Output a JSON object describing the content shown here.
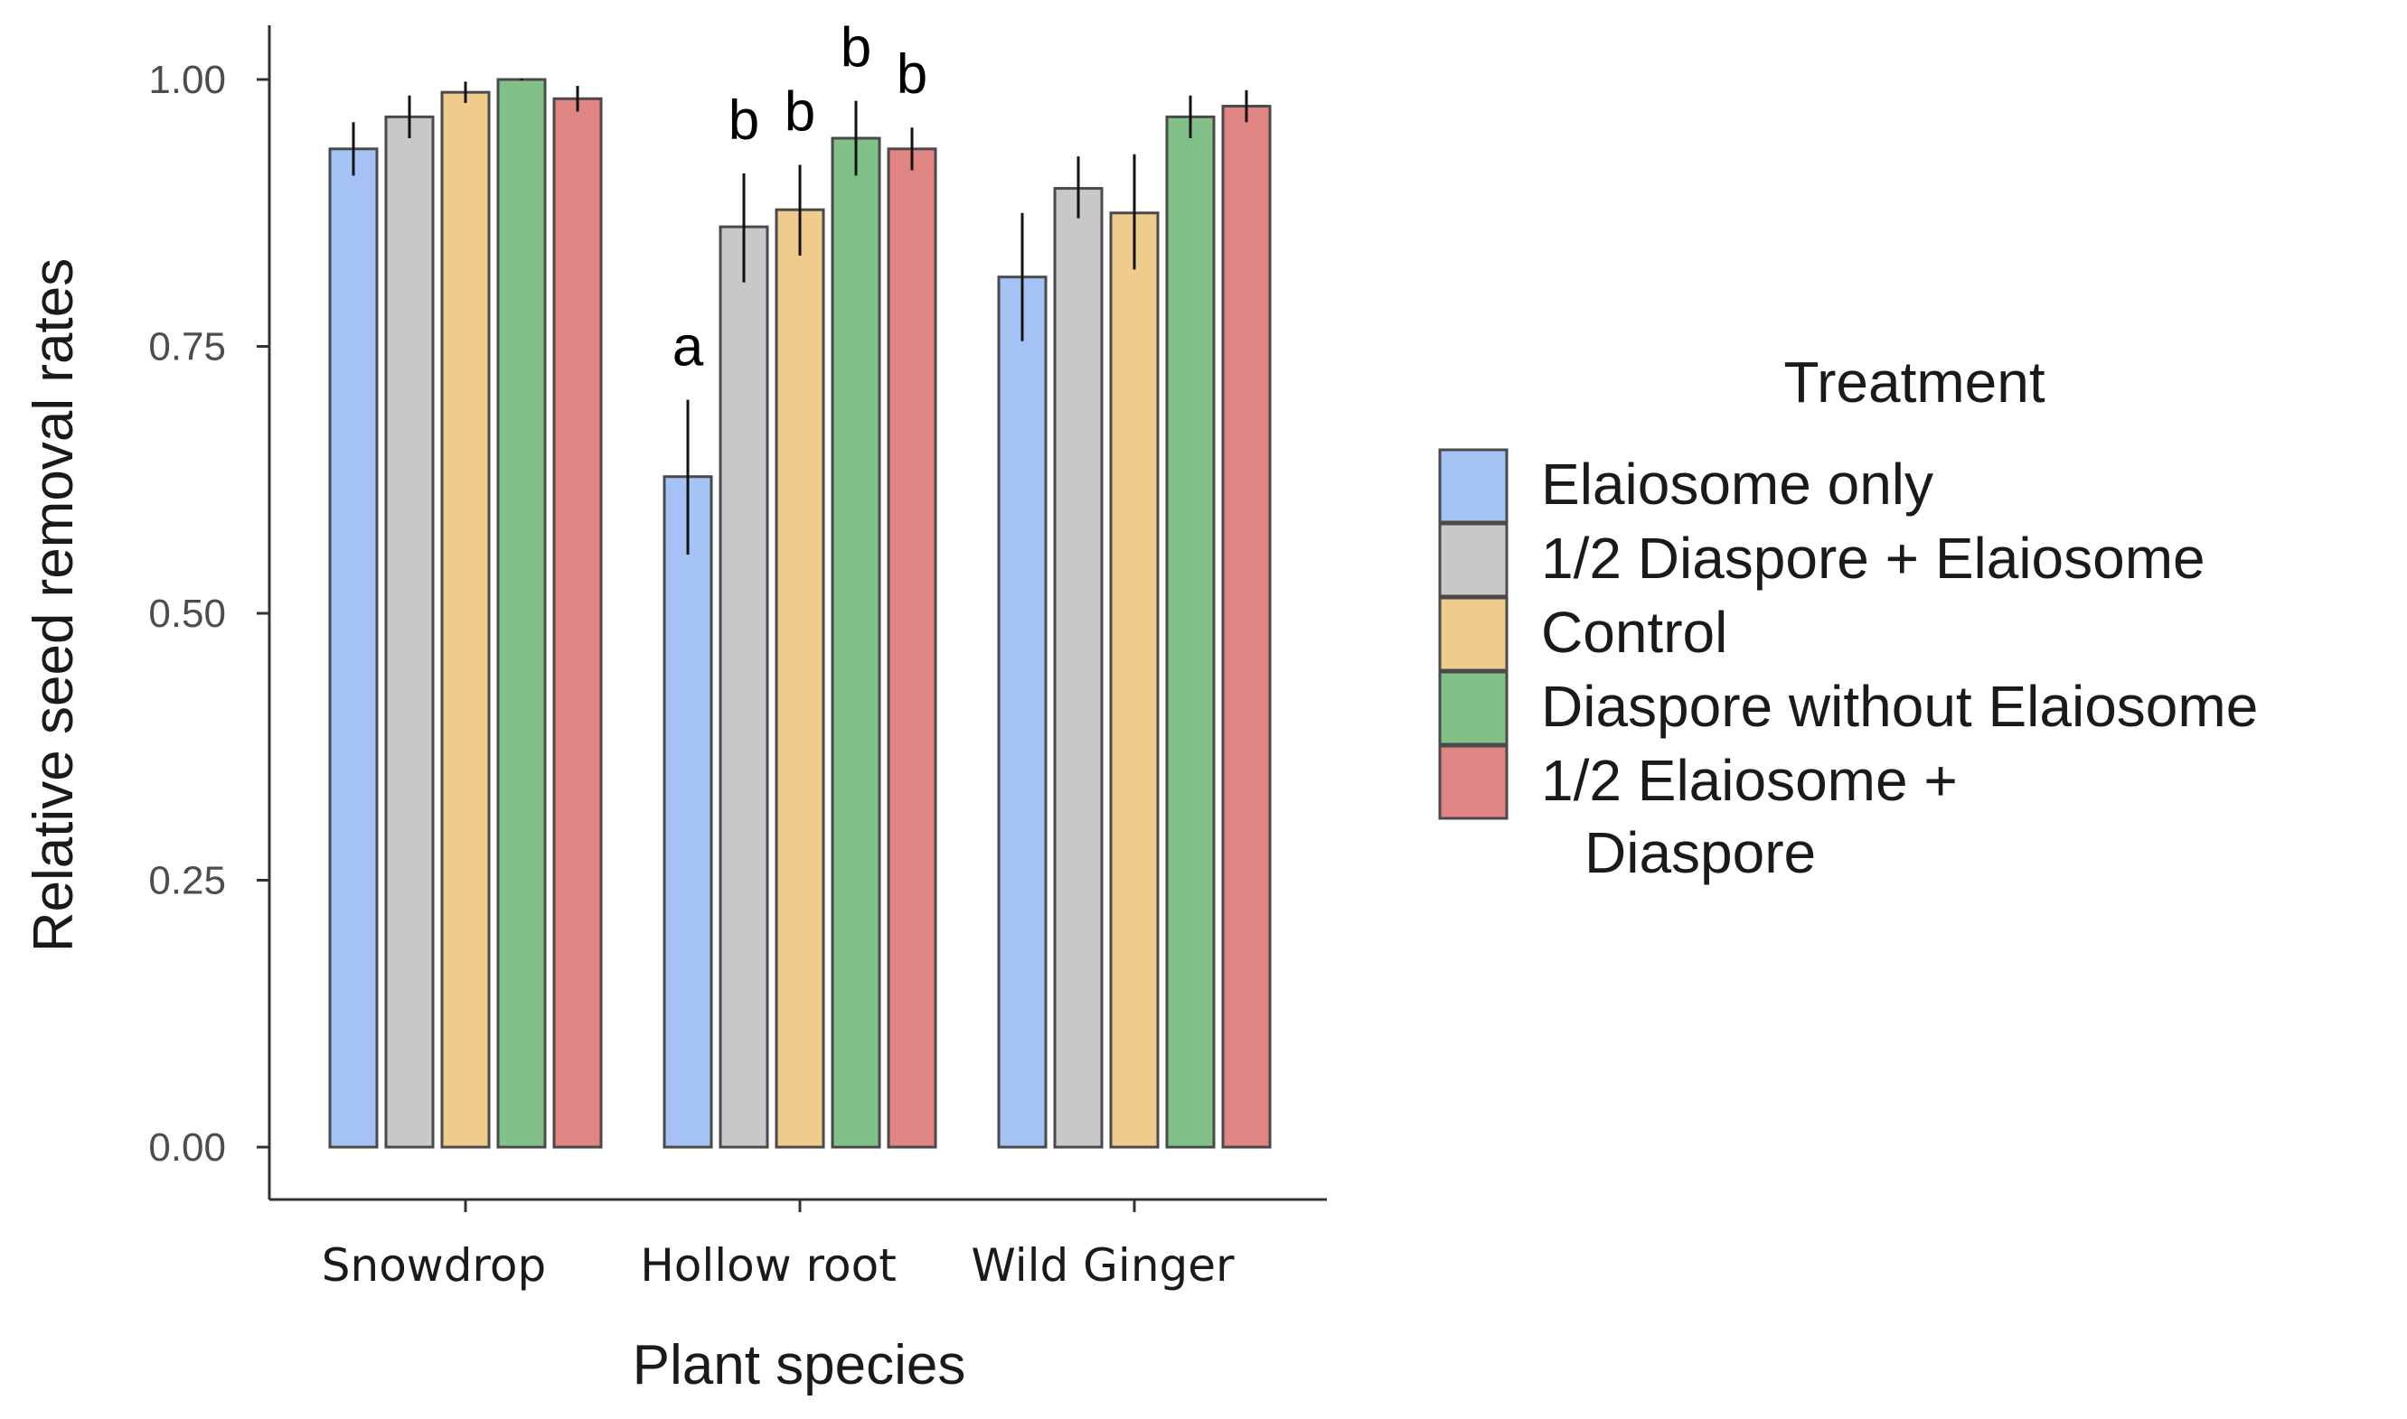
{
  "chart_data": {
    "type": "bar",
    "title": "",
    "xlabel": "Plant species",
    "ylabel": "Relative seed removal rates",
    "ylim": [
      0,
      1.0
    ],
    "yticks": [
      "0.00",
      "0.25",
      "0.50",
      "0.75",
      "1.00"
    ],
    "ytick_values": [
      0,
      0.25,
      0.5,
      0.75,
      1.0
    ],
    "categories": [
      "Snowdrop",
      "Hollow root",
      "Wild Ginger"
    ],
    "grid": false,
    "legend": {
      "title": "Treatment",
      "position": "right"
    },
    "series": [
      {
        "name": "Elaiosome only",
        "color": "#a4c2f4",
        "values": [
          0.935,
          0.628,
          0.815
        ],
        "err_low": [
          0.91,
          0.555,
          0.755
        ],
        "err_high": [
          0.96,
          0.7,
          0.875
        ]
      },
      {
        "name": "1/2 Diaspore + Elaiosome",
        "color": "#c8c8c8",
        "values": [
          0.965,
          0.862,
          0.898
        ],
        "err_low": [
          0.945,
          0.81,
          0.87
        ],
        "err_high": [
          0.985,
          0.912,
          0.928
        ]
      },
      {
        "name": "Control",
        "color": "#f0cc8c",
        "values": [
          0.988,
          0.878,
          0.875
        ],
        "err_low": [
          0.978,
          0.835,
          0.822
        ],
        "err_high": [
          0.998,
          0.92,
          0.93
        ]
      },
      {
        "name": "Diaspore without Elaiosome",
        "color": "#82c08a",
        "values": [
          1.0,
          0.945,
          0.965
        ],
        "err_low": [
          0.999,
          0.91,
          0.945
        ],
        "err_high": [
          1.001,
          0.98,
          0.985
        ]
      },
      {
        "name": "1/2 Elaiosome + Diaspore",
        "legend_lines": [
          "1/2 Elaiosome +",
          "Diaspore"
        ],
        "color": "#e08484",
        "values": [
          0.982,
          0.935,
          0.975
        ],
        "err_low": [
          0.97,
          0.915,
          0.96
        ],
        "err_high": [
          0.994,
          0.955,
          0.99
        ]
      }
    ],
    "annotations": [
      {
        "category": "Hollow root",
        "series": 0,
        "text": "a"
      },
      {
        "category": "Hollow root",
        "series": 1,
        "text": "b"
      },
      {
        "category": "Hollow root",
        "series": 2,
        "text": "b"
      },
      {
        "category": "Hollow root",
        "series": 3,
        "text": "b"
      },
      {
        "category": "Hollow root",
        "series": 4,
        "text": "b"
      }
    ]
  }
}
